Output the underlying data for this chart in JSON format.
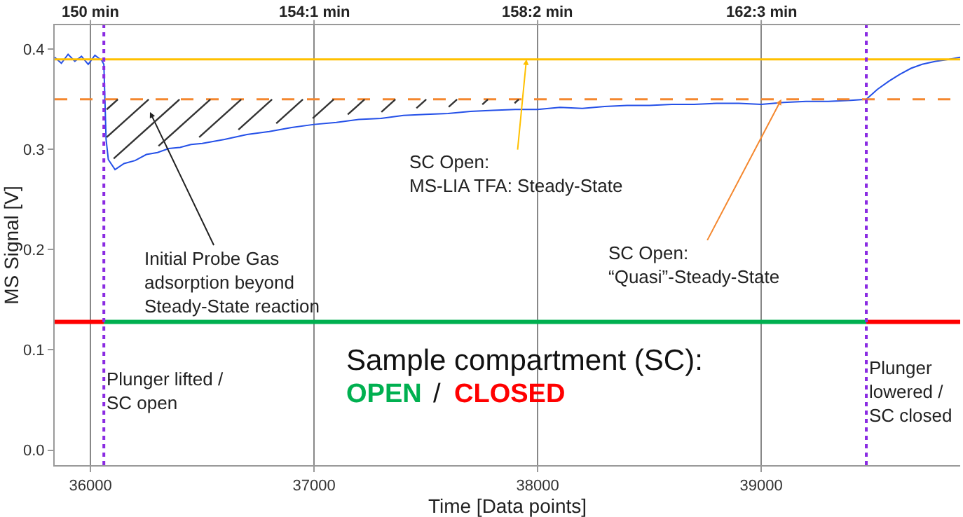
{
  "chart_data": {
    "type": "line",
    "xlabel": "Time [Data points]",
    "ylabel": "MS Signal [V]",
    "xlim": [
      35840,
      39890
    ],
    "ylim": [
      -0.015,
      0.424
    ],
    "xticks": [
      36000,
      37000,
      38000,
      39000
    ],
    "yticks": [
      {
        "value": 0,
        "label": "0.0"
      },
      0.1,
      0.2,
      0.3,
      0.4
    ],
    "grid": "x",
    "series": [
      {
        "color": "#2450e8",
        "x": [
          35840,
          35870,
          35900,
          35930,
          35960,
          35990,
          36020,
          36050,
          36060,
          36070,
          36080,
          36110,
          36150,
          36200,
          36250,
          36300,
          36350,
          36400,
          36450,
          36500,
          36600,
          36700,
          36800,
          36900,
          37000,
          37100,
          37200,
          37300,
          37400,
          37500,
          37600,
          37700,
          37800,
          37900,
          38000,
          38100,
          38200,
          38300,
          38400,
          38500,
          38600,
          38700,
          38800,
          38900,
          39000,
          39100,
          39200,
          39300,
          39400,
          39470,
          39520,
          39570,
          39620,
          39670,
          39720,
          39780,
          39840,
          39890
        ],
        "values": [
          0.392,
          0.386,
          0.395,
          0.388,
          0.393,
          0.385,
          0.394,
          0.389,
          0.385,
          0.31,
          0.29,
          0.28,
          0.286,
          0.289,
          0.295,
          0.297,
          0.301,
          0.302,
          0.305,
          0.306,
          0.31,
          0.315,
          0.318,
          0.322,
          0.325,
          0.327,
          0.33,
          0.331,
          0.334,
          0.335,
          0.336,
          0.338,
          0.339,
          0.34,
          0.34,
          0.342,
          0.341,
          0.343,
          0.344,
          0.344,
          0.345,
          0.345,
          0.346,
          0.346,
          0.345,
          0.347,
          0.348,
          0.348,
          0.349,
          0.35,
          0.36,
          0.368,
          0.375,
          0.381,
          0.385,
          0.388,
          0.39,
          0.392
        ]
      },
      {
        "color": "#ff0000",
        "x": [
          35840,
          36060
        ],
        "values": [
          0.128,
          0.128
        ]
      },
      {
        "color": "#00b050",
        "x": [
          36060,
          39470
        ],
        "values": [
          0.128,
          0.128
        ]
      },
      {
        "color": "#ff0000",
        "x": [
          39470,
          39890
        ],
        "values": [
          0.128,
          0.128
        ]
      }
    ],
    "ref_lines": [
      {
        "axis": "y",
        "value": 0.39,
        "color": "#ffc000",
        "line_style": "solid"
      },
      {
        "axis": "y",
        "value": 0.35,
        "color": "#f4872e",
        "line_style": "dashed"
      },
      {
        "axis": "x",
        "value": 36060,
        "color": "#8a2be2",
        "line_style": "dotted"
      },
      {
        "axis": "x",
        "value": 39470,
        "color": "#8a2be2",
        "line_style": "dotted"
      }
    ],
    "annotations": [
      "150 min",
      "154:1 min",
      "158:2 min",
      "162:3 min",
      "Initial Probe Gas\nadsorption beyond\nSteady-State reaction",
      {
        "text": "SC Open:\nMS-LIA TFA: Steady-State",
        "x": 37950,
        "y": 0.39
      },
      {
        "text": "SC Open:\n“Quasi”-Steady-State",
        "x": 39090,
        "y": 0.35
      },
      "Sample compartment (SC):",
      "OPEN",
      "/",
      "CLOSED",
      "Plunger lifted /\nSC open",
      "Plunger\nlowered /\nSC closed"
    ]
  }
}
